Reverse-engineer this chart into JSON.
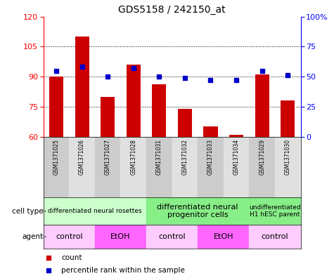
{
  "title": "GDS5158 / 242150_at",
  "samples": [
    "GSM1371025",
    "GSM1371026",
    "GSM1371027",
    "GSM1371028",
    "GSM1371031",
    "GSM1371032",
    "GSM1371033",
    "GSM1371034",
    "GSM1371029",
    "GSM1371030"
  ],
  "counts": [
    90,
    110,
    80,
    96,
    86,
    74,
    65,
    61,
    91,
    78
  ],
  "percentiles": [
    55,
    58,
    50,
    57,
    50,
    49,
    47,
    47,
    55,
    51
  ],
  "ylim_left": [
    60,
    120
  ],
  "ylim_right": [
    0,
    100
  ],
  "yticks_left": [
    60,
    75,
    90,
    105,
    120
  ],
  "yticks_right": [
    0,
    25,
    50,
    75,
    100
  ],
  "bar_color": "#cc0000",
  "dot_color": "#0000cc",
  "grid_color": "black",
  "grid_style": "dotted",
  "cell_type_groups": [
    {
      "label": "differentiated neural rosettes",
      "start": 0,
      "end": 4,
      "color": "#ccffcc",
      "fontsize": 6.5
    },
    {
      "label": "differentiated neural\nprogenitor cells",
      "start": 4,
      "end": 8,
      "color": "#88ee88",
      "fontsize": 8
    },
    {
      "label": "undifferentiated\nH1 hESC parent",
      "start": 8,
      "end": 10,
      "color": "#88ee88",
      "fontsize": 6.5
    }
  ],
  "agent_groups": [
    {
      "label": "control",
      "start": 0,
      "end": 2,
      "color": "#ffccff"
    },
    {
      "label": "EtOH",
      "start": 2,
      "end": 4,
      "color": "#ff66ff"
    },
    {
      "label": "control",
      "start": 4,
      "end": 6,
      "color": "#ffccff"
    },
    {
      "label": "EtOH",
      "start": 6,
      "end": 8,
      "color": "#ff66ff"
    },
    {
      "label": "control",
      "start": 8,
      "end": 10,
      "color": "#ffccff"
    }
  ],
  "legend_count_label": "count",
  "legend_pct_label": "percentile rank within the sample",
  "cell_type_label": "cell type",
  "agent_label": "agent",
  "bar_width": 0.55
}
